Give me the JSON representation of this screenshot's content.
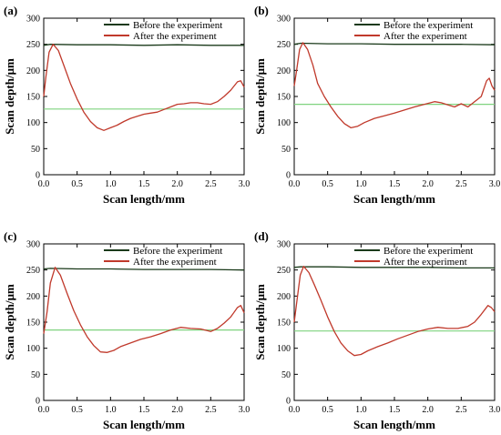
{
  "figure": {
    "background": "#ffffff",
    "axis_color": "#000000"
  },
  "chart_data": [
    {
      "type": "line",
      "panel_label": "(a)",
      "title": "",
      "xlabel": "Scan length/mm",
      "ylabel": "Scan depth/μm",
      "xlim": [
        0.0,
        3.0
      ],
      "ylim": [
        0,
        300
      ],
      "x_ticks": [
        "0.0",
        "0.5",
        "1.0",
        "1.5",
        "2.0",
        "2.5",
        "3.0"
      ],
      "y_ticks": [
        "0",
        "50",
        "100",
        "150",
        "200",
        "250",
        "300"
      ],
      "legend_position": "top-right",
      "series": [
        {
          "name": "Before the experiment",
          "color": "#1a3a1a",
          "points": [
            [
              0.0,
              248
            ],
            [
              0.1,
              250
            ],
            [
              0.5,
              249
            ],
            [
              1.0,
              249
            ],
            [
              1.5,
              248
            ],
            [
              2.0,
              249
            ],
            [
              2.5,
              248
            ],
            [
              3.0,
              248
            ]
          ]
        },
        {
          "name": "After the experiment",
          "color": "#c0392b",
          "points": [
            [
              0.0,
              150
            ],
            [
              0.03,
              185
            ],
            [
              0.08,
              235
            ],
            [
              0.14,
              250
            ],
            [
              0.22,
              238
            ],
            [
              0.3,
              210
            ],
            [
              0.4,
              175
            ],
            [
              0.5,
              145
            ],
            [
              0.6,
              120
            ],
            [
              0.7,
              102
            ],
            [
              0.8,
              90
            ],
            [
              0.9,
              85
            ],
            [
              1.0,
              90
            ],
            [
              1.1,
              95
            ],
            [
              1.2,
              102
            ],
            [
              1.3,
              108
            ],
            [
              1.4,
              112
            ],
            [
              1.5,
              116
            ],
            [
              1.6,
              118
            ],
            [
              1.7,
              120
            ],
            [
              1.8,
              125
            ],
            [
              1.9,
              130
            ],
            [
              2.0,
              135
            ],
            [
              2.1,
              136
            ],
            [
              2.2,
              138
            ],
            [
              2.3,
              138
            ],
            [
              2.4,
              136
            ],
            [
              2.5,
              135
            ],
            [
              2.6,
              140
            ],
            [
              2.7,
              150
            ],
            [
              2.8,
              162
            ],
            [
              2.9,
              178
            ],
            [
              2.95,
              180
            ],
            [
              3.0,
              168
            ]
          ]
        },
        {
          "name": "",
          "color": "#7fd37f",
          "points": [
            [
              0.0,
              126
            ],
            [
              3.0,
              126
            ]
          ]
        }
      ]
    },
    {
      "type": "line",
      "panel_label": "(b)",
      "title": "",
      "xlabel": "Scan length/mm",
      "ylabel": "Scan depth/μm",
      "xlim": [
        0.0,
        3.0
      ],
      "ylim": [
        0,
        300
      ],
      "x_ticks": [
        "0.0",
        "0.5",
        "1.0",
        "1.5",
        "2.0",
        "2.5",
        "3.0"
      ],
      "y_ticks": [
        "0",
        "50",
        "100",
        "150",
        "200",
        "250",
        "300"
      ],
      "legend_position": "top-right",
      "series": [
        {
          "name": "Before the experiment",
          "color": "#1a3a1a",
          "points": [
            [
              0.0,
              250
            ],
            [
              0.1,
              252
            ],
            [
              0.5,
              251
            ],
            [
              1.0,
              251
            ],
            [
              1.5,
              250
            ],
            [
              2.0,
              250
            ],
            [
              2.5,
              250
            ],
            [
              3.0,
              249
            ]
          ]
        },
        {
          "name": "After the experiment",
          "color": "#c0392b",
          "points": [
            [
              0.0,
              170
            ],
            [
              0.03,
              195
            ],
            [
              0.08,
              240
            ],
            [
              0.13,
              253
            ],
            [
              0.2,
              240
            ],
            [
              0.28,
              210
            ],
            [
              0.35,
              175
            ],
            [
              0.45,
              150
            ],
            [
              0.55,
              130
            ],
            [
              0.65,
              112
            ],
            [
              0.75,
              98
            ],
            [
              0.85,
              90
            ],
            [
              0.95,
              93
            ],
            [
              1.05,
              100
            ],
            [
              1.2,
              108
            ],
            [
              1.35,
              113
            ],
            [
              1.5,
              118
            ],
            [
              1.65,
              124
            ],
            [
              1.8,
              130
            ],
            [
              1.95,
              135
            ],
            [
              2.1,
              140
            ],
            [
              2.2,
              138
            ],
            [
              2.3,
              134
            ],
            [
              2.4,
              130
            ],
            [
              2.5,
              136
            ],
            [
              2.6,
              130
            ],
            [
              2.7,
              140
            ],
            [
              2.8,
              150
            ],
            [
              2.88,
              180
            ],
            [
              2.92,
              185
            ],
            [
              2.96,
              170
            ],
            [
              3.0,
              162
            ]
          ]
        },
        {
          "name": "",
          "color": "#7fd37f",
          "points": [
            [
              0.0,
              135
            ],
            [
              3.0,
              135
            ]
          ]
        }
      ]
    },
    {
      "type": "line",
      "panel_label": "(c)",
      "title": "",
      "xlabel": "Scan length/mm",
      "ylabel": "Scan depth/μm",
      "xlim": [
        0.0,
        3.0
      ],
      "ylim": [
        0,
        300
      ],
      "x_ticks": [
        "0.0",
        "0.5",
        "1.0",
        "1.5",
        "2.0",
        "2.5",
        "3.0"
      ],
      "y_ticks": [
        "0",
        "50",
        "100",
        "150",
        "200",
        "250",
        "300"
      ],
      "legend_position": "top-right",
      "series": [
        {
          "name": "Before the experiment",
          "color": "#1a3a1a",
          "points": [
            [
              0.0,
              252
            ],
            [
              0.1,
              253
            ],
            [
              0.5,
              252
            ],
            [
              1.0,
              252
            ],
            [
              1.5,
              251
            ],
            [
              2.0,
              251
            ],
            [
              2.5,
              251
            ],
            [
              3.0,
              250
            ]
          ]
        },
        {
          "name": "After the experiment",
          "color": "#c0392b",
          "points": [
            [
              0.0,
              128
            ],
            [
              0.05,
              170
            ],
            [
              0.1,
              225
            ],
            [
              0.17,
              255
            ],
            [
              0.25,
              240
            ],
            [
              0.35,
              205
            ],
            [
              0.45,
              172
            ],
            [
              0.55,
              145
            ],
            [
              0.65,
              122
            ],
            [
              0.75,
              105
            ],
            [
              0.85,
              93
            ],
            [
              0.95,
              92
            ],
            [
              1.05,
              96
            ],
            [
              1.15,
              103
            ],
            [
              1.3,
              110
            ],
            [
              1.45,
              117
            ],
            [
              1.6,
              122
            ],
            [
              1.75,
              128
            ],
            [
              1.9,
              135
            ],
            [
              2.05,
              140
            ],
            [
              2.2,
              138
            ],
            [
              2.35,
              137
            ],
            [
              2.5,
              132
            ],
            [
              2.6,
              138
            ],
            [
              2.7,
              148
            ],
            [
              2.8,
              160
            ],
            [
              2.9,
              178
            ],
            [
              2.95,
              182
            ],
            [
              3.0,
              168
            ]
          ]
        },
        {
          "name": "",
          "color": "#7fd37f",
          "points": [
            [
              0.0,
              135
            ],
            [
              3.0,
              135
            ]
          ]
        }
      ]
    },
    {
      "type": "line",
      "panel_label": "(d)",
      "title": "",
      "xlabel": "Scan length/mm",
      "ylabel": "Scan depth/μm",
      "xlim": [
        0.0,
        3.0
      ],
      "ylim": [
        0,
        300
      ],
      "x_ticks": [
        "0.0",
        "0.5",
        "1.0",
        "1.5",
        "2.0",
        "2.5",
        "3.0"
      ],
      "y_ticks": [
        "0",
        "50",
        "100",
        "150",
        "200",
        "250",
        "300"
      ],
      "legend_position": "top-right",
      "series": [
        {
          "name": "Before the experiment",
          "color": "#1a3a1a",
          "points": [
            [
              0.0,
              255
            ],
            [
              0.1,
              256
            ],
            [
              0.5,
              256
            ],
            [
              1.0,
              255
            ],
            [
              1.5,
              255
            ],
            [
              2.0,
              255
            ],
            [
              2.5,
              254
            ],
            [
              3.0,
              254
            ]
          ]
        },
        {
          "name": "After the experiment",
          "color": "#c0392b",
          "points": [
            [
              0.0,
              150
            ],
            [
              0.04,
              190
            ],
            [
              0.09,
              240
            ],
            [
              0.14,
              257
            ],
            [
              0.22,
              245
            ],
            [
              0.3,
              222
            ],
            [
              0.4,
              192
            ],
            [
              0.5,
              160
            ],
            [
              0.6,
              132
            ],
            [
              0.7,
              110
            ],
            [
              0.8,
              95
            ],
            [
              0.9,
              86
            ],
            [
              1.0,
              88
            ],
            [
              1.1,
              95
            ],
            [
              1.25,
              103
            ],
            [
              1.4,
              110
            ],
            [
              1.55,
              118
            ],
            [
              1.7,
              125
            ],
            [
              1.85,
              132
            ],
            [
              2.0,
              137
            ],
            [
              2.15,
              140
            ],
            [
              2.3,
              138
            ],
            [
              2.45,
              138
            ],
            [
              2.6,
              142
            ],
            [
              2.7,
              150
            ],
            [
              2.8,
              165
            ],
            [
              2.9,
              182
            ],
            [
              2.95,
              178
            ],
            [
              3.0,
              170
            ]
          ]
        },
        {
          "name": "",
          "color": "#7fd37f",
          "points": [
            [
              0.0,
              133
            ],
            [
              3.0,
              133
            ]
          ]
        }
      ]
    }
  ]
}
